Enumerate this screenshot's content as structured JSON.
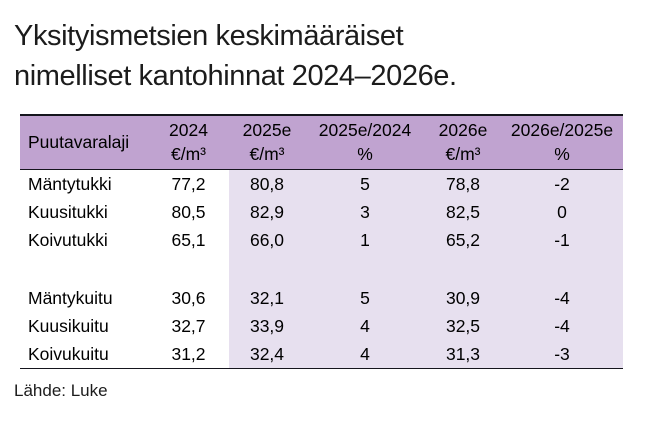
{
  "title": {
    "line1": "Yksityismetsien keskimääräiset",
    "line2": "nimelliset kantohinnat 2024–2026e."
  },
  "source": "Lähde: Luke",
  "colors": {
    "header_bg": "#c0a3d0",
    "highlight_bg": "#e7e0ef",
    "border": "#15151d",
    "text": "#000000"
  },
  "table": {
    "header": [
      {
        "label": "Puutavaralaji",
        "unit": ""
      },
      {
        "label": "2024",
        "unit": "€/m³"
      },
      {
        "label": "2025e",
        "unit": "€/m³"
      },
      {
        "label": "2025e/2024",
        "unit": "%"
      },
      {
        "label": "2026e",
        "unit": "€/m³"
      },
      {
        "label": "2026e/2025e",
        "unit": "%"
      }
    ],
    "rows": [
      {
        "label": "Mäntytukki",
        "values": [
          "77,2",
          "80,8",
          "5",
          "78,8",
          "-2"
        ]
      },
      {
        "label": "Kuusitukki",
        "values": [
          "80,5",
          "82,9",
          "3",
          "82,5",
          "0"
        ]
      },
      {
        "label": "Koivutukki",
        "values": [
          "65,1",
          "66,0",
          "1",
          "65,2",
          "-1"
        ]
      },
      {
        "label": "",
        "values": [
          "",
          "",
          "",
          "",
          ""
        ]
      },
      {
        "label": "Mäntykuitu",
        "values": [
          "30,6",
          "32,1",
          "5",
          "30,9",
          "-4"
        ]
      },
      {
        "label": "Kuusikuitu",
        "values": [
          "32,7",
          "33,9",
          "4",
          "32,5",
          "-4"
        ]
      },
      {
        "label": "Koivukuitu",
        "values": [
          "31,2",
          "32,4",
          "4",
          "31,3",
          "-3"
        ]
      }
    ]
  },
  "chart_data": {
    "type": "table",
    "title": "Yksityismetsien keskimääräiset nimelliset kantohinnat 2024–2026e.",
    "columns": [
      "Puutavaralaji",
      "2024 €/m³",
      "2025e €/m³",
      "2025e/2024 %",
      "2026e €/m³",
      "2026e/2025e %"
    ],
    "rows": [
      [
        "Mäntytukki",
        77.2,
        80.8,
        5,
        78.8,
        -2
      ],
      [
        "Kuusitukki",
        80.5,
        82.9,
        3,
        82.5,
        0
      ],
      [
        "Koivutukki",
        65.1,
        66.0,
        1,
        65.2,
        -1
      ],
      [
        "Mäntykuitu",
        30.6,
        32.1,
        5,
        30.9,
        -4
      ],
      [
        "Kuusikuitu",
        32.7,
        33.9,
        4,
        32.5,
        -4
      ],
      [
        "Koivukuitu",
        31.2,
        32.4,
        4,
        31.3,
        -3
      ]
    ],
    "source": "Lähde: Luke",
    "highlighted_columns": [
      "2025e €/m³",
      "2025e/2024 %",
      "2026e €/m³",
      "2026e/2025e %"
    ]
  }
}
